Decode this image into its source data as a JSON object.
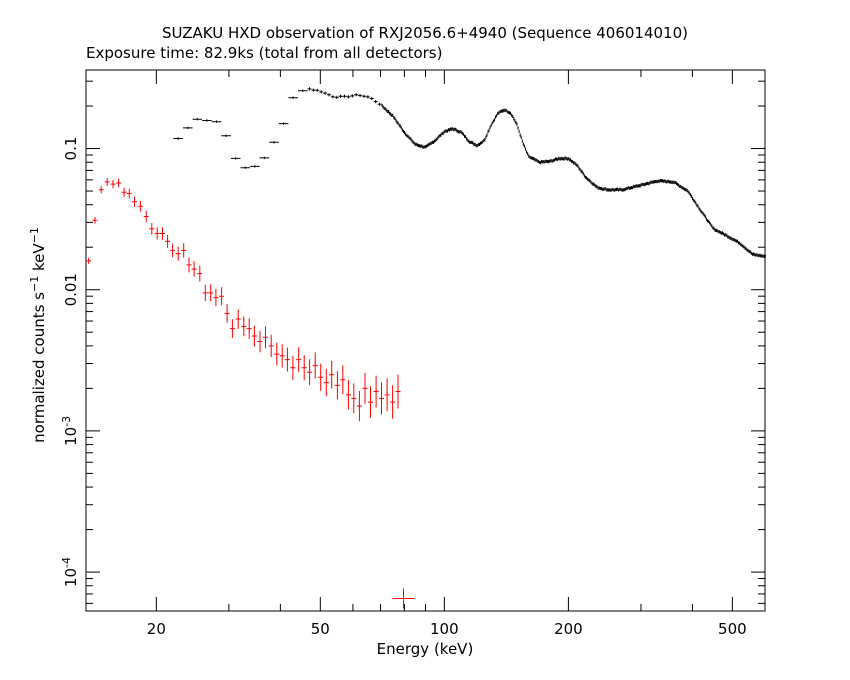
{
  "chart_data": {
    "type": "scatter",
    "title": "SUZAKU HXD observation of RXJ2056.6+4940 (Sequence 406014010)",
    "subtitle": "Exposure time: 82.9ks (total from all detectors)",
    "xlabel": "Energy (keV)",
    "ylabel": "normalized counts s^-1 keV^-1",
    "x_scale": "log",
    "y_scale": "log",
    "xlim": [
      13.5,
      600
    ],
    "ylim": [
      5.3e-05,
      0.36
    ],
    "x_ticks": [
      {
        "value": 20,
        "label": "20"
      },
      {
        "value": 50,
        "label": "50"
      },
      {
        "value": 100,
        "label": "100"
      },
      {
        "value": 200,
        "label": "200"
      },
      {
        "value": 500,
        "label": "500"
      }
    ],
    "y_ticks": [
      {
        "value": 0.1,
        "label": "0.1"
      },
      {
        "value": 0.01,
        "label": "0.01"
      },
      {
        "value": 0.001,
        "label": "10",
        "exp": "-3"
      },
      {
        "value": 0.0001,
        "label": "10",
        "exp": "-4"
      }
    ],
    "grid": false,
    "series": [
      {
        "name": "",
        "color": "#000000",
        "style": "dense-crosses",
        "anchors": [
          [
            22,
            0.108
          ],
          [
            25,
            0.163
          ],
          [
            28,
            0.155
          ],
          [
            30,
            0.115
          ],
          [
            31.5,
            0.079
          ],
          [
            33.5,
            0.07
          ],
          [
            36,
            0.08
          ],
          [
            38,
            0.102
          ],
          [
            41,
            0.155
          ],
          [
            43,
            0.23
          ],
          [
            46,
            0.268
          ],
          [
            50,
            0.255
          ],
          [
            54,
            0.232
          ],
          [
            58,
            0.233
          ],
          [
            62,
            0.24
          ],
          [
            66,
            0.23
          ],
          [
            70,
            0.205
          ],
          [
            75,
            0.17
          ],
          [
            80,
            0.13
          ],
          [
            85,
            0.107
          ],
          [
            90,
            0.102
          ],
          [
            95,
            0.114
          ],
          [
            100,
            0.132
          ],
          [
            105,
            0.138
          ],
          [
            110,
            0.13
          ],
          [
            115,
            0.112
          ],
          [
            120,
            0.105
          ],
          [
            125,
            0.114
          ],
          [
            130,
            0.148
          ],
          [
            135,
            0.178
          ],
          [
            140,
            0.188
          ],
          [
            145,
            0.178
          ],
          [
            150,
            0.148
          ],
          [
            155,
            0.11
          ],
          [
            160,
            0.088
          ],
          [
            170,
            0.08
          ],
          [
            180,
            0.081
          ],
          [
            190,
            0.085
          ],
          [
            200,
            0.085
          ],
          [
            210,
            0.076
          ],
          [
            220,
            0.063
          ],
          [
            235,
            0.053
          ],
          [
            250,
            0.051
          ],
          [
            270,
            0.051
          ],
          [
            300,
            0.055
          ],
          [
            330,
            0.059
          ],
          [
            360,
            0.058
          ],
          [
            390,
            0.05
          ],
          [
            420,
            0.036
          ],
          [
            450,
            0.027
          ],
          [
            480,
            0.0245
          ],
          [
            520,
            0.0215
          ],
          [
            560,
            0.0178
          ],
          [
            600,
            0.0172
          ]
        ]
      },
      {
        "name": "",
        "color": "#ff0000",
        "style": "crosses-with-errorbars",
        "points": [
          [
            13.7,
            0.016
          ],
          [
            14.2,
            0.031
          ],
          [
            14.7,
            0.051
          ],
          [
            15.2,
            0.058
          ],
          [
            15.7,
            0.056
          ],
          [
            16.2,
            0.057
          ],
          [
            16.7,
            0.049
          ],
          [
            17.2,
            0.048
          ],
          [
            17.7,
            0.042
          ],
          [
            18.3,
            0.039
          ],
          [
            18.9,
            0.033
          ],
          [
            19.5,
            0.027
          ],
          [
            20.1,
            0.025
          ],
          [
            20.7,
            0.025
          ],
          [
            21.3,
            0.022
          ],
          [
            21.9,
            0.019
          ],
          [
            22.6,
            0.018
          ],
          [
            23.3,
            0.019
          ],
          [
            24.0,
            0.015
          ],
          [
            24.7,
            0.014
          ],
          [
            25.5,
            0.013
          ],
          [
            26.3,
            0.0095
          ],
          [
            27.1,
            0.0095
          ],
          [
            27.9,
            0.0088
          ],
          [
            28.8,
            0.009
          ],
          [
            29.7,
            0.0068
          ],
          [
            30.6,
            0.0053
          ],
          [
            31.6,
            0.0062
          ],
          [
            32.6,
            0.0055
          ],
          [
            33.6,
            0.0053
          ],
          [
            34.6,
            0.0047
          ],
          [
            35.7,
            0.0043
          ],
          [
            36.8,
            0.0046
          ],
          [
            38.0,
            0.004
          ],
          [
            39.2,
            0.0035
          ],
          [
            40.4,
            0.0034
          ],
          [
            41.6,
            0.0032
          ],
          [
            42.9,
            0.0028
          ],
          [
            44.3,
            0.0032
          ],
          [
            45.7,
            0.0028
          ],
          [
            47.1,
            0.0026
          ],
          [
            48.6,
            0.0029
          ],
          [
            50.1,
            0.0024
          ],
          [
            51.7,
            0.0022
          ],
          [
            53.3,
            0.0025
          ],
          [
            55.0,
            0.0021
          ],
          [
            56.7,
            0.0023
          ],
          [
            58.5,
            0.0018
          ],
          [
            60.3,
            0.0017
          ],
          [
            62.2,
            0.0015
          ],
          [
            64.2,
            0.002
          ],
          [
            66.2,
            0.0016
          ],
          [
            68.3,
            0.0019
          ],
          [
            70.4,
            0.0017
          ],
          [
            72.6,
            0.0018
          ],
          [
            74.9,
            0.0016
          ],
          [
            77.2,
            0.0019
          ],
          [
            79.6,
            6.5e-05
          ]
        ]
      }
    ]
  }
}
